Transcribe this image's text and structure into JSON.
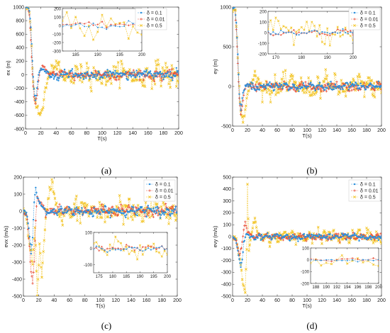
{
  "panels": [
    {
      "id": "a",
      "caption": "(a)",
      "ylabel": "ex (m)",
      "xlabel": "T(s)",
      "xlim": [
        0,
        200
      ],
      "ylim": [
        -800,
        1000
      ],
      "xticks": [
        0,
        20,
        40,
        60,
        80,
        100,
        120,
        140,
        160,
        180,
        200
      ],
      "yticks": [
        -800,
        -600,
        -400,
        -200,
        0,
        200,
        400,
        600,
        800,
        1000
      ],
      "initial": 1000,
      "transient": {
        "s1": [
          [
            0,
            1000
          ],
          [
            3,
            1000
          ],
          [
            5,
            950
          ],
          [
            7,
            700
          ],
          [
            9,
            200
          ],
          [
            11,
            -200
          ],
          [
            13,
            -380
          ],
          [
            15,
            -200
          ],
          [
            17,
            20
          ],
          [
            20,
            80
          ],
          [
            25,
            60
          ],
          [
            30,
            20
          ]
        ],
        "s2": [
          [
            0,
            1000
          ],
          [
            3,
            1000
          ],
          [
            5,
            900
          ],
          [
            7,
            500
          ],
          [
            9,
            0
          ],
          [
            11,
            -300
          ],
          [
            13,
            -420
          ],
          [
            15,
            -300
          ],
          [
            17,
            -80
          ],
          [
            19,
            60
          ],
          [
            22,
            120
          ],
          [
            27,
            70
          ],
          [
            32,
            10
          ]
        ],
        "s3": [
          [
            0,
            1000
          ],
          [
            4,
            1000
          ],
          [
            6,
            850
          ],
          [
            8,
            400
          ],
          [
            10,
            -100
          ],
          [
            12,
            -300
          ],
          [
            14,
            -450
          ],
          [
            17,
            -560
          ],
          [
            20,
            -600
          ],
          [
            23,
            -450
          ],
          [
            26,
            -200
          ],
          [
            30,
            -50
          ],
          [
            35,
            100
          ],
          [
            40,
            150
          ],
          [
            45,
            80
          ]
        ]
      },
      "noise": [
        60,
        55,
        140
      ],
      "inset": {
        "xlim": [
          182,
          200
        ],
        "ylim": [
          -300,
          200
        ],
        "xticks": [
          185,
          190,
          195,
          200
        ],
        "yticks": [
          -300,
          -200,
          -100,
          0,
          100,
          200
        ]
      },
      "legend": [
        "δ = 0.1",
        "δ = 0.01",
        "δ = 0.5"
      ]
    },
    {
      "id": "b",
      "caption": "(b)",
      "ylabel": "ey (m)",
      "xlabel": "T(s)",
      "xlim": [
        0,
        200
      ],
      "ylim": [
        -500,
        1000
      ],
      "xticks": [
        0,
        20,
        40,
        60,
        80,
        100,
        120,
        140,
        160,
        180,
        200
      ],
      "yticks": [
        -500,
        0,
        500,
        1000
      ],
      "initial": 1000,
      "transient": {
        "s1": [
          [
            0,
            1000
          ],
          [
            3,
            1000
          ],
          [
            5,
            800
          ],
          [
            7,
            400
          ],
          [
            9,
            -100
          ],
          [
            11,
            -300
          ],
          [
            13,
            -150
          ],
          [
            16,
            -20
          ],
          [
            20,
            30
          ]
        ],
        "s2": [
          [
            0,
            1000
          ],
          [
            3,
            1000
          ],
          [
            5,
            700
          ],
          [
            7,
            300
          ],
          [
            9,
            -150
          ],
          [
            11,
            -350
          ],
          [
            13,
            -250
          ],
          [
            16,
            -50
          ],
          [
            20,
            40
          ]
        ],
        "s3": [
          [
            0,
            1000
          ],
          [
            4,
            950
          ],
          [
            6,
            600
          ],
          [
            8,
            200
          ],
          [
            10,
            -200
          ],
          [
            12,
            -380
          ],
          [
            14,
            -470
          ],
          [
            17,
            -300
          ],
          [
            20,
            -100
          ],
          [
            25,
            50
          ],
          [
            30,
            150
          ],
          [
            35,
            60
          ]
        ]
      },
      "noise": [
        45,
        45,
        110
      ],
      "inset": {
        "xlim": [
          167,
          200
        ],
        "ylim": [
          -200,
          200
        ],
        "xticks": [
          170,
          180,
          190,
          200
        ],
        "yticks": [
          -200,
          -100,
          0,
          100,
          200
        ]
      },
      "legend": [
        "δ = 0.1",
        "δ = 0.01",
        "δ = 0.5"
      ]
    },
    {
      "id": "c",
      "caption": "(c)",
      "ylabel": "evx (m/s)",
      "xlabel": "T(s)",
      "xlim": [
        0,
        200
      ],
      "ylim": [
        -500,
        200
      ],
      "xticks": [
        0,
        20,
        40,
        60,
        80,
        100,
        120,
        140,
        160,
        180,
        200
      ],
      "yticks": [
        -500,
        -400,
        -300,
        -200,
        -100,
        0,
        100,
        200
      ],
      "initial": 0,
      "transient": {
        "s1": [
          [
            0,
            0
          ],
          [
            4,
            -10
          ],
          [
            7,
            -100
          ],
          [
            10,
            -250
          ],
          [
            12,
            -150
          ],
          [
            14,
            50
          ],
          [
            16,
            140
          ],
          [
            18,
            80
          ],
          [
            22,
            40
          ],
          [
            28,
            10
          ]
        ],
        "s2": [
          [
            0,
            0
          ],
          [
            4,
            -20
          ],
          [
            7,
            -150
          ],
          [
            10,
            -350
          ],
          [
            12,
            -420
          ],
          [
            14,
            -300
          ],
          [
            16,
            -50
          ],
          [
            18,
            80
          ],
          [
            22,
            60
          ],
          [
            28,
            10
          ]
        ],
        "s3": [
          [
            0,
            0
          ],
          [
            4,
            -30
          ],
          [
            8,
            -200
          ],
          [
            12,
            -300
          ],
          [
            15,
            -100
          ],
          [
            18,
            -480
          ],
          [
            21,
            -200
          ],
          [
            24,
            -400
          ],
          [
            28,
            -100
          ],
          [
            33,
            100
          ],
          [
            37,
            180
          ],
          [
            40,
            100
          ],
          [
            45,
            0
          ],
          [
            50,
            -50
          ]
        ]
      },
      "noise": [
        25,
        25,
        60
      ],
      "inset": {
        "xlim": [
          173,
          200
        ],
        "ylim": [
          -150,
          100
        ],
        "xticks": [
          175,
          180,
          185,
          190,
          195,
          200
        ],
        "yticks": [
          -100,
          0,
          100
        ]
      },
      "legend": [
        "δ = 0.1",
        "δ = 0.01",
        "δ = 0.5"
      ]
    },
    {
      "id": "d",
      "caption": "(d)",
      "ylabel": "evy (m/s)",
      "xlabel": "T(s)",
      "xlim": [
        0,
        200
      ],
      "ylim": [
        -500,
        500
      ],
      "xticks": [
        0,
        20,
        40,
        60,
        80,
        100,
        120,
        140,
        160,
        180,
        200
      ],
      "yticks": [
        -500,
        -400,
        -300,
        -200,
        -100,
        0,
        100,
        200,
        300,
        400,
        500
      ],
      "initial": 0,
      "transient": {
        "s1": [
          [
            0,
            0
          ],
          [
            4,
            -20
          ],
          [
            8,
            -150
          ],
          [
            11,
            -250
          ],
          [
            13,
            -200
          ],
          [
            15,
            -50
          ],
          [
            18,
            20
          ],
          [
            22,
            10
          ]
        ],
        "s2": [
          [
            0,
            0
          ],
          [
            5,
            -40
          ],
          [
            9,
            -150
          ],
          [
            12,
            -100
          ],
          [
            15,
            60
          ],
          [
            17,
            120
          ],
          [
            20,
            40
          ],
          [
            25,
            10
          ]
        ],
        "s3": [
          [
            0,
            0
          ],
          [
            5,
            -30
          ],
          [
            10,
            -200
          ],
          [
            14,
            -400
          ],
          [
            17,
            -470
          ],
          [
            19,
            -100
          ],
          [
            20,
            420
          ],
          [
            22,
            -100
          ],
          [
            26,
            50
          ],
          [
            30,
            150
          ],
          [
            34,
            30
          ],
          [
            40,
            -20
          ]
        ]
      },
      "noise": [
        22,
        22,
        45
      ],
      "inset": {
        "xlim": [
          187,
          200
        ],
        "ylim": [
          -200,
          100
        ],
        "xticks": [
          188,
          190,
          192,
          194,
          196,
          198,
          200
        ],
        "yticks": [
          -200,
          -100,
          0,
          100
        ]
      },
      "legend": [
        "δ = 0.1",
        "δ = 0.01",
        "δ = 0.5"
      ]
    }
  ],
  "series_colors": [
    "#2a8fdc",
    "#e8503a",
    "#f2c21d"
  ],
  "series_markers": [
    "star",
    "plus",
    "x"
  ]
}
